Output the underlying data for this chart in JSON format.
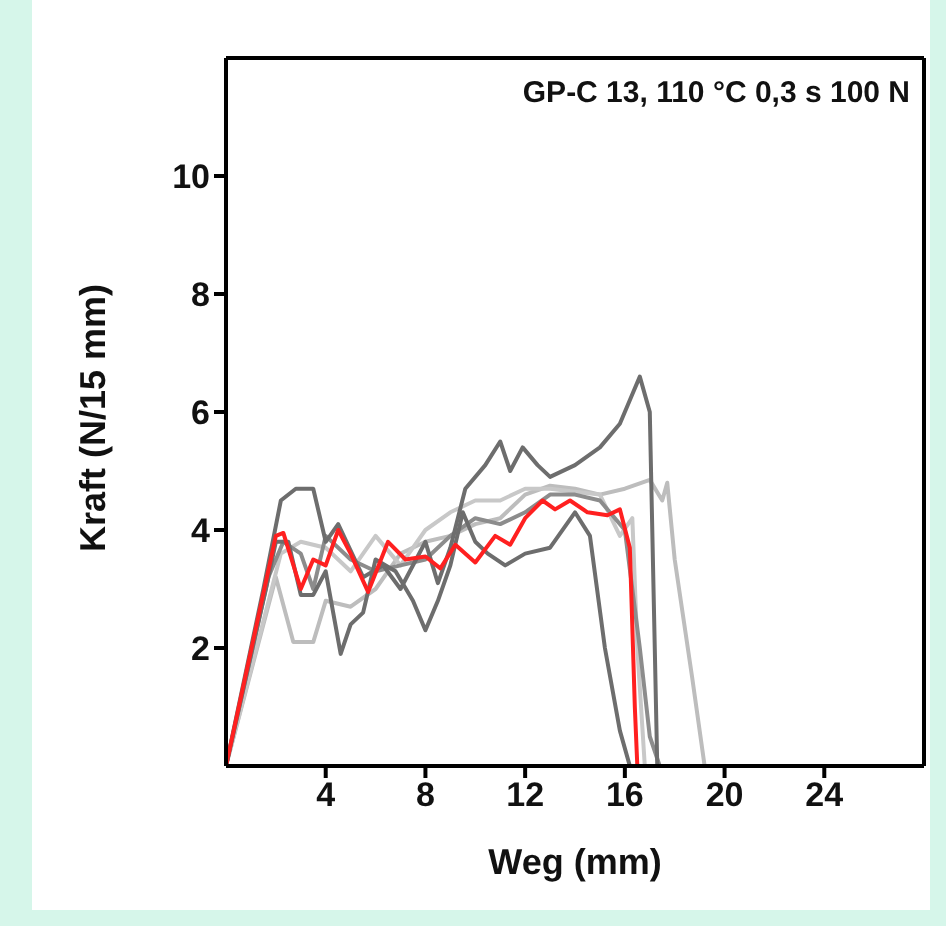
{
  "chart_data": {
    "type": "line",
    "xlabel": "Weg (mm)",
    "ylabel": "Kraft (N/15 mm)",
    "annotations": [
      "GP-C 13, 110 °C 0,3 s 100 N"
    ],
    "xlim": [
      0,
      28
    ],
    "xticks": [
      4,
      8,
      12,
      16,
      20,
      24
    ],
    "ylim": [
      0,
      12
    ],
    "yticks": [
      2,
      4,
      6,
      8,
      10
    ],
    "marker": "none",
    "line_style": "solid",
    "series": [
      {
        "color": "#bdbdbd",
        "x": [
          0,
          2,
          2.7,
          3.5,
          4,
          5,
          6,
          7,
          8,
          9,
          10,
          11,
          12,
          13,
          14,
          15,
          16,
          17,
          17.5,
          17.7,
          18,
          18.7,
          19.2
        ],
        "values": [
          0,
          3.2,
          2.1,
          2.1,
          2.8,
          2.7,
          3.0,
          3.6,
          3.8,
          3.9,
          4.1,
          4.2,
          4.6,
          4.75,
          4.7,
          4.6,
          4.7,
          4.85,
          4.5,
          4.8,
          3.5,
          1.5,
          0
        ]
      },
      {
        "color": "#c8c8c8",
        "x": [
          0,
          2.2,
          3,
          4,
          5,
          6,
          7,
          8,
          9,
          10,
          11,
          12,
          13,
          14,
          15,
          15.8,
          16.3,
          16.5,
          16.8
        ],
        "values": [
          0,
          3.6,
          3.8,
          3.7,
          3.3,
          3.9,
          3.4,
          4.0,
          4.3,
          4.5,
          4.5,
          4.7,
          4.7,
          4.65,
          4.6,
          3.9,
          4.2,
          2,
          0
        ]
      },
      {
        "color": "#8c8c8c",
        "x": [
          0,
          1.7,
          2.3,
          3,
          3.5,
          4,
          5,
          6,
          7,
          8,
          9,
          10,
          11,
          12,
          13,
          14,
          15,
          16,
          16.6,
          17,
          17.4
        ],
        "values": [
          0,
          3.2,
          3.8,
          3.6,
          3.0,
          3.9,
          3.5,
          3.3,
          3.4,
          3.5,
          3.9,
          4.2,
          4.1,
          4.3,
          4.6,
          4.6,
          4.5,
          4.0,
          2,
          0.5,
          0
        ]
      },
      {
        "color": "#6d6d6d",
        "x": [
          0,
          1.6,
          2,
          2.5,
          3,
          3.5,
          4,
          4.6,
          5,
          5.5,
          6,
          6.8,
          7.5,
          8,
          8.5,
          9,
          9.5,
          10,
          10.5,
          11.2,
          12,
          13,
          14,
          14.6,
          15.2,
          15.8,
          16.2
        ],
        "values": [
          0,
          3,
          3.8,
          3.8,
          2.9,
          2.9,
          3.3,
          1.9,
          2.4,
          2.6,
          3.5,
          3.3,
          2.8,
          2.3,
          2.8,
          3.4,
          4.3,
          3.8,
          3.6,
          3.4,
          3.6,
          3.7,
          4.3,
          3.9,
          2,
          0.6,
          0
        ]
      },
      {
        "color": "#6d6d6d",
        "x": [
          0,
          1.5,
          2.2,
          2.8,
          3.5,
          4,
          4.5,
          5.5,
          6.3,
          7,
          8,
          8.5,
          9,
          9.6,
          10.4,
          11,
          11.4,
          11.9,
          12.5,
          13,
          14,
          15,
          15.8,
          16.3,
          16.6,
          17,
          17.2,
          17.3
        ],
        "values": [
          0,
          3,
          4.5,
          4.7,
          4.7,
          3.8,
          4.1,
          3.2,
          3.4,
          3.0,
          3.8,
          3.1,
          3.7,
          4.7,
          5.1,
          5.5,
          5.0,
          5.4,
          5.1,
          4.9,
          5.1,
          5.4,
          5.8,
          6.3,
          6.6,
          6.0,
          2,
          0
        ]
      },
      {
        "color": "#ff2020",
        "x": [
          0,
          2,
          2.3,
          3,
          3.5,
          4,
          4.5,
          5,
          5.7,
          6.5,
          7.2,
          8,
          8.6,
          9.2,
          10,
          10.8,
          11.4,
          12,
          12.7,
          13.2,
          13.8,
          14.5,
          15.3,
          15.8,
          16.2,
          16.4,
          16.5
        ],
        "values": [
          0,
          3.9,
          3.95,
          3.0,
          3.5,
          3.4,
          4.0,
          3.6,
          2.95,
          3.8,
          3.5,
          3.55,
          3.35,
          3.75,
          3.45,
          3.9,
          3.75,
          4.2,
          4.5,
          4.35,
          4.5,
          4.3,
          4.25,
          4.35,
          3.7,
          1,
          0
        ]
      }
    ]
  }
}
